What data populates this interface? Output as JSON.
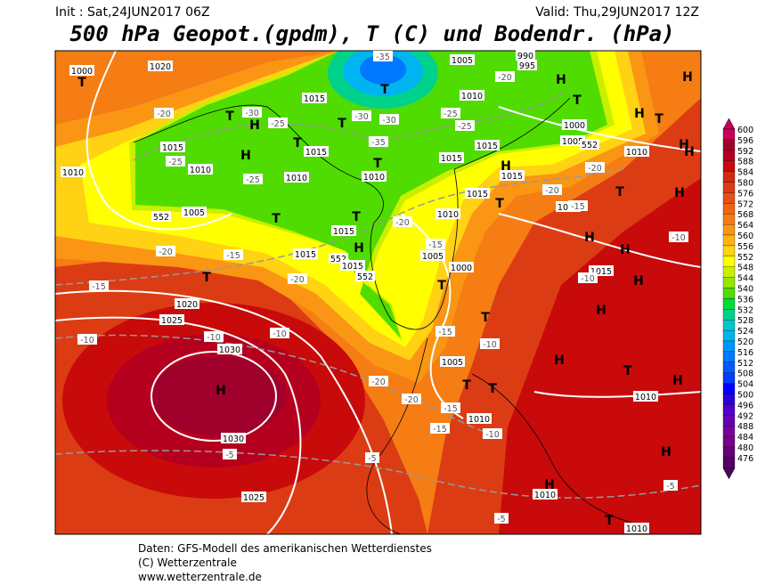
{
  "header": {
    "init": "Init : Sat,24JUN2017 06Z",
    "valid": "Valid: Thu,29JUN2017 12Z",
    "title": "500 hPa Geopot.(gpdm), T (C) und Bodendr. (hPa)"
  },
  "colorbar": {
    "levels": [
      600,
      596,
      592,
      588,
      584,
      580,
      576,
      572,
      568,
      564,
      560,
      556,
      552,
      548,
      544,
      540,
      536,
      532,
      528,
      524,
      520,
      516,
      512,
      508,
      504,
      500,
      496,
      492,
      488,
      484,
      480,
      476
    ],
    "colors": [
      "#c8005a",
      "#a0002c",
      "#b4001e",
      "#c80a0a",
      "#d22814",
      "#dc3c14",
      "#e65014",
      "#f06414",
      "#f57d14",
      "#fa9614",
      "#ffb414",
      "#ffd214",
      "#ffff00",
      "#c8f000",
      "#96e600",
      "#50dc00",
      "#00dc3c",
      "#00d28c",
      "#00c8c8",
      "#00b4f0",
      "#0096ff",
      "#0078ff",
      "#005aff",
      "#003cff",
      "#0000ff",
      "#2800dc",
      "#5000c8",
      "#6400b4",
      "#7800a0",
      "#78008c",
      "#640078",
      "#500064"
    ]
  },
  "map": {
    "labels": [
      "1000",
      "T",
      "1020",
      "1015",
      "-35",
      "T",
      "1005",
      "990",
      "995",
      "-20",
      "H",
      "T",
      "H",
      "H",
      "T",
      "H",
      "1010",
      "-25",
      "-25",
      "1000",
      "1005",
      "552",
      "-20",
      "T",
      "-30",
      "-25",
      "H",
      "-30",
      "-30",
      "T",
      "1015",
      "-25",
      "H",
      "T",
      "1015",
      "-35",
      "T",
      "1010",
      "1010",
      "-25",
      "1010",
      "1010",
      "1015",
      "1015",
      "H",
      "1015",
      "1010",
      "-20",
      "H",
      "552",
      "1005",
      "T",
      "T",
      "-20",
      "1010",
      "1015",
      "T",
      "-20",
      "1015",
      "-15",
      "T",
      "H",
      "H",
      "1015",
      "-20",
      "-15",
      "1015",
      "552",
      "1015",
      "-15",
      "1005",
      "H",
      "-10",
      "T",
      "1015",
      "H",
      "1000",
      "T",
      "-10",
      "H",
      "552",
      "-20",
      "-15",
      "1020",
      "H",
      "1025",
      "T",
      "-15",
      "-10",
      "-10",
      "-10",
      "1030",
      "-10",
      "1005",
      "H",
      "T",
      "H",
      "H",
      "-20",
      "T",
      "T",
      "1010",
      "-20",
      "-15",
      "1010",
      "-15",
      "-10",
      "1030",
      "-5",
      "-5",
      "H",
      "-5",
      "H",
      "1010",
      "1025",
      "-5",
      "T",
      "1010"
    ]
  },
  "footer": {
    "lines": [
      "Daten: GFS-Modell des amerikanischen Wetterdienstes",
      "(C) Wetterzentrale",
      "www.wetterzentrale.de"
    ]
  }
}
